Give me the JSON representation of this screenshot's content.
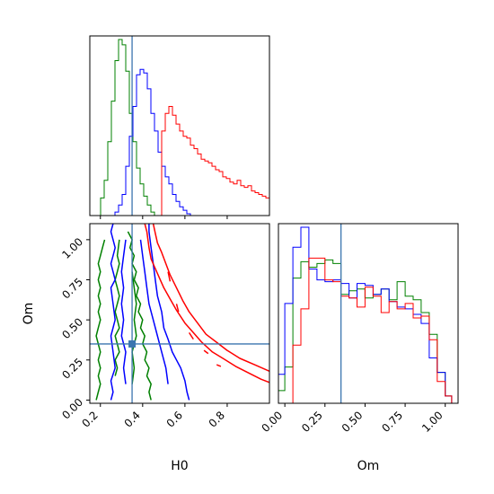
{
  "chart_data": {
    "type": "corner",
    "parameters": [
      "H0",
      "Om"
    ],
    "truth": {
      "H0": 0.35,
      "Om": 0.35
    },
    "truth_color": "#3b75af",
    "series": [
      {
        "color": "#008000"
      },
      {
        "color": "#0000ff"
      },
      {
        "color": "#ff0000"
      }
    ],
    "panels": [
      {
        "id": "hist-H0",
        "kind": "histogram",
        "param": "H0",
        "xlim": [
          0.15,
          1.0
        ],
        "bin_edges": [
          0.15,
          0.167,
          0.184,
          0.201,
          0.218,
          0.235,
          0.252,
          0.269,
          0.286,
          0.303,
          0.32,
          0.337,
          0.354,
          0.371,
          0.388,
          0.405,
          0.422,
          0.439,
          0.456,
          0.473,
          0.49,
          0.507,
          0.524,
          0.541,
          0.558,
          0.575,
          0.592,
          0.609,
          0.626,
          0.643,
          0.66,
          0.677,
          0.694,
          0.711,
          0.728,
          0.745,
          0.762,
          0.779,
          0.796,
          0.813,
          0.83,
          0.847,
          0.864,
          0.881,
          0.898,
          0.915,
          0.932,
          0.949,
          0.966,
          0.983,
          1.0
        ],
        "counts": [
          [
            0,
            0,
            0,
            10,
            20,
            42,
            65,
            88,
            100,
            97,
            82,
            58,
            42,
            27,
            18,
            11,
            6,
            2,
            0,
            0,
            0,
            0,
            0,
            0,
            0,
            0,
            0,
            0,
            0,
            0,
            0,
            0,
            0,
            0,
            0,
            0,
            0,
            0,
            0,
            0,
            0,
            0,
            0,
            0,
            0,
            0,
            0,
            0,
            0,
            0
          ],
          [
            0,
            0,
            0,
            0,
            0,
            0,
            0,
            2,
            6,
            12,
            28,
            45,
            62,
            80,
            83,
            81,
            72,
            58,
            48,
            36,
            28,
            22,
            18,
            12,
            8,
            5,
            3,
            1,
            0,
            0,
            0,
            0,
            0,
            0,
            0,
            0,
            0,
            0,
            0,
            0,
            0,
            0,
            0,
            0,
            0,
            0,
            0,
            0,
            0,
            0
          ],
          [
            0,
            0,
            0,
            0,
            0,
            0,
            0,
            0,
            0,
            0,
            0,
            0,
            0,
            0,
            0,
            0,
            0,
            0,
            0,
            0,
            48,
            58,
            62,
            57,
            52,
            48,
            45,
            44,
            40,
            38,
            35,
            32,
            31,
            30,
            28,
            26,
            25,
            22,
            21,
            19,
            18,
            20,
            17,
            16,
            17,
            14,
            13,
            12,
            11,
            10
          ]
        ]
      },
      {
        "id": "hist-Om",
        "kind": "histogram",
        "param": "Om",
        "xlim": [
          -0.04,
          1.08
        ],
        "xticks": [
          0.0,
          0.25,
          0.5,
          0.75,
          1.0
        ],
        "xtick_labels": [
          "0.00",
          "0.25",
          "0.50",
          "0.75",
          "1.00"
        ],
        "xlabel": "Om",
        "bin_edges": [
          -0.04,
          0.0,
          0.05,
          0.1,
          0.15,
          0.2,
          0.25,
          0.3,
          0.35,
          0.4,
          0.45,
          0.5,
          0.55,
          0.6,
          0.65,
          0.7,
          0.75,
          0.8,
          0.85,
          0.9,
          0.95,
          1.0,
          1.04,
          1.08
        ],
        "counts": [
          [
            0.07,
            0.2,
            0.69,
            0.78,
            0.75,
            0.77,
            0.79,
            0.77,
            0.6,
            0.62,
            0.63,
            0.58,
            0.6,
            0.63,
            0.57,
            0.67,
            0.59,
            0.57,
            0.5,
            0.38,
            0.17,
            0.04,
            0.0
          ],
          [
            0.16,
            0.55,
            0.86,
            0.97,
            0.74,
            0.68,
            0.67,
            0.68,
            0.66,
            0.58,
            0.66,
            0.65,
            0.6,
            0.63,
            0.56,
            0.53,
            0.52,
            0.49,
            0.44,
            0.25,
            0.17,
            0.04,
            0.0
          ],
          [
            0.0,
            0.0,
            0.32,
            0.52,
            0.8,
            0.8,
            0.68,
            0.67,
            0.59,
            0.58,
            0.53,
            0.64,
            0.59,
            0.5,
            0.56,
            0.52,
            0.55,
            0.47,
            0.48,
            0.35,
            0.12,
            0.04,
            0.0
          ]
        ]
      },
      {
        "id": "contour-H0-Om",
        "kind": "contour",
        "xparam": "H0",
        "yparam": "Om",
        "xlim": [
          0.15,
          1.0
        ],
        "ylim": [
          -0.02,
          1.1
        ],
        "xticks": [
          0.2,
          0.4,
          0.6,
          0.8
        ],
        "xtick_labels": [
          "0.2",
          "0.4",
          "0.6",
          "0.8"
        ],
        "yticks": [
          0.0,
          0.25,
          0.5,
          0.75,
          1.0
        ],
        "ytick_labels": [
          "0.00",
          "0.25",
          "0.50",
          "0.75",
          "1.00"
        ],
        "xlabel": "H0",
        "ylabel": "Om",
        "contours": [
          {
            "series": 0,
            "x": [
              0.18,
              0.19,
              0.2,
              0.19,
              0.2,
              0.19,
              0.2,
              0.19,
              0.18,
              0.19,
              0.2,
              0.19,
              0.2,
              0.19,
              0.2,
              0.19,
              0.2,
              0.19,
              0.2,
              0.21,
              0.22
            ],
            "y": [
              0.0,
              0.05,
              0.1,
              0.15,
              0.2,
              0.25,
              0.3,
              0.35,
              0.4,
              0.45,
              0.5,
              0.55,
              0.6,
              0.65,
              0.7,
              0.75,
              0.8,
              0.85,
              0.9,
              0.95,
              1.0
            ]
          },
          {
            "series": 0,
            "x": [
              0.44,
              0.43,
              0.44,
              0.42,
              0.43,
              0.41,
              0.42,
              0.4,
              0.41,
              0.39,
              0.4,
              0.38,
              0.39,
              0.37,
              0.38,
              0.36,
              0.37,
              0.35,
              0.36,
              0.34,
              0.35,
              0.33
            ],
            "y": [
              0.0,
              0.05,
              0.1,
              0.15,
              0.2,
              0.25,
              0.3,
              0.35,
              0.4,
              0.45,
              0.5,
              0.55,
              0.6,
              0.65,
              0.7,
              0.75,
              0.8,
              0.85,
              0.9,
              0.95,
              1.0,
              1.05
            ]
          },
          {
            "series": 0,
            "x": [
              0.27,
              0.28,
              0.27,
              0.29,
              0.28,
              0.27,
              0.29,
              0.28,
              0.27,
              0.28,
              0.29,
              0.28,
              0.27,
              0.28,
              0.29,
              0.28,
              0.29
            ],
            "y": [
              0.15,
              0.2,
              0.25,
              0.3,
              0.35,
              0.4,
              0.45,
              0.5,
              0.55,
              0.6,
              0.65,
              0.7,
              0.75,
              0.8,
              0.85,
              0.9,
              1.0
            ]
          },
          {
            "series": 0,
            "x": [
              0.35,
              0.36,
              0.35,
              0.37,
              0.36,
              0.37,
              0.36,
              0.35
            ],
            "y": [
              0.1,
              0.2,
              0.3,
              0.4,
              0.5,
              0.6,
              0.7,
              0.8
            ]
          },
          {
            "series": 1,
            "x": [
              0.25,
              0.26,
              0.25,
              0.27,
              0.26,
              0.25,
              0.27,
              0.26,
              0.25,
              0.27,
              0.26,
              0.25,
              0.26,
              0.27,
              0.26,
              0.25,
              0.26
            ],
            "y": [
              0.0,
              0.05,
              0.12,
              0.2,
              0.3,
              0.4,
              0.5,
              0.6,
              0.7,
              0.75,
              0.8,
              0.85,
              0.9,
              0.95,
              1.0,
              1.05,
              1.1
            ]
          },
          {
            "series": 1,
            "x": [
              0.62,
              0.61,
              0.6,
              0.58,
              0.56,
              0.54,
              0.52,
              0.5,
              0.49,
              0.47,
              0.46,
              0.45,
              0.44,
              0.43,
              0.43
            ],
            "y": [
              0.0,
              0.05,
              0.12,
              0.2,
              0.25,
              0.3,
              0.38,
              0.45,
              0.55,
              0.65,
              0.75,
              0.85,
              0.95,
              1.05,
              1.1
            ]
          },
          {
            "series": 1,
            "x": [
              0.32,
              0.31,
              0.32,
              0.3,
              0.31,
              0.3,
              0.31,
              0.3,
              0.31,
              0.32
            ],
            "y": [
              0.1,
              0.2,
              0.3,
              0.4,
              0.5,
              0.6,
              0.7,
              0.8,
              0.9,
              1.0
            ]
          },
          {
            "series": 1,
            "x": [
              0.52,
              0.51,
              0.49,
              0.47,
              0.45,
              0.43,
              0.42,
              0.41,
              0.4,
              0.39
            ],
            "y": [
              0.1,
              0.2,
              0.3,
              0.4,
              0.5,
              0.6,
              0.7,
              0.8,
              0.9,
              1.0
            ]
          },
          {
            "series": 2,
            "x": [
              0.41,
              0.42,
              0.43,
              0.44,
              0.46,
              0.48,
              0.5,
              0.53,
              0.56,
              0.6,
              0.64,
              0.68,
              0.73,
              0.78,
              0.84,
              0.9,
              0.96,
              1.0
            ],
            "y": [
              1.1,
              1.05,
              0.95,
              0.88,
              0.82,
              0.76,
              0.7,
              0.63,
              0.56,
              0.48,
              0.42,
              0.36,
              0.3,
              0.26,
              0.21,
              0.17,
              0.13,
              0.11
            ]
          },
          {
            "series": 2,
            "x": [
              0.45,
              0.46,
              0.47,
              0.49,
              0.51,
              0.53,
              0.56,
              0.59,
              0.62,
              0.66,
              0.7,
              0.75,
              0.8,
              0.86,
              0.93,
              1.0
            ],
            "y": [
              1.1,
              1.04,
              0.98,
              0.92,
              0.85,
              0.78,
              0.7,
              0.62,
              0.55,
              0.48,
              0.41,
              0.36,
              0.31,
              0.26,
              0.22,
              0.18
            ]
          },
          {
            "series": 2,
            "x": [
              0.52,
              0.53
            ],
            "y": [
              0.8,
              0.74
            ]
          },
          {
            "series": 2,
            "x": [
              0.56,
              0.57
            ],
            "y": [
              0.6,
              0.55
            ]
          },
          {
            "series": 2,
            "x": [
              0.62,
              0.64
            ],
            "y": [
              0.42,
              0.38
            ]
          },
          {
            "series": 2,
            "x": [
              0.69,
              0.71
            ],
            "y": [
              0.31,
              0.29
            ]
          },
          {
            "series": 2,
            "x": [
              0.75,
              0.77
            ],
            "y": [
              0.22,
              0.21
            ]
          }
        ]
      }
    ]
  }
}
